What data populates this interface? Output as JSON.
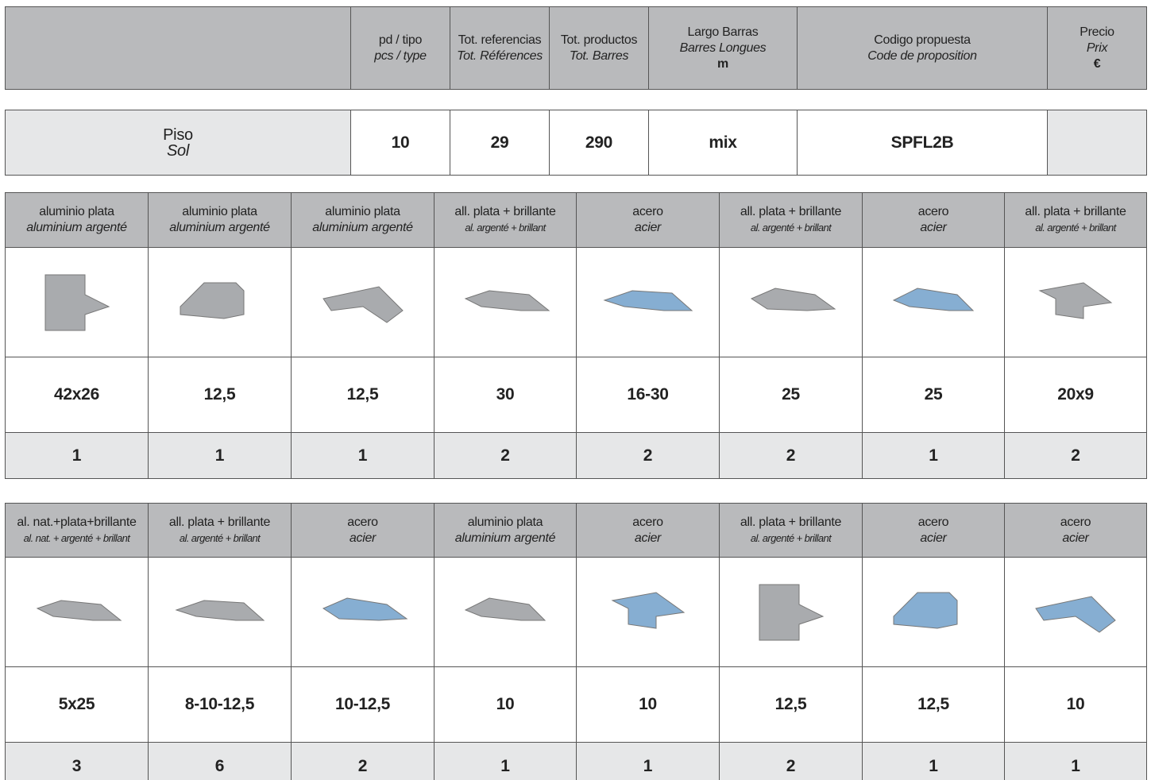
{
  "header": {
    "columns": [
      {
        "es": "pd / tipo",
        "fr": "pcs / type"
      },
      {
        "es": "Tot. referencias",
        "fr": "Tot. Références"
      },
      {
        "es": "Tot. productos",
        "fr": "Tot. Barres"
      },
      {
        "es": "Largo Barras",
        "fr": "Barres Longues",
        "unit": "m"
      },
      {
        "es": "Codigo propuesta",
        "fr": "Code de proposition"
      },
      {
        "es": "Precio",
        "fr": "Prix",
        "unit": "€"
      }
    ]
  },
  "summary": {
    "es": "Piso",
    "fr": "Sol",
    "values": [
      10,
      29,
      290,
      "mix",
      "SPFL2B"
    ]
  },
  "blocks": [
    {
      "items": [
        {
          "es": "aluminio plata",
          "fr": "aluminium argenté",
          "size": "42x26",
          "qty": 1
        },
        {
          "es": "aluminio plata",
          "fr": "aluminium argenté",
          "size": "12,5",
          "qty": 1
        },
        {
          "es": "aluminio plata",
          "fr": "aluminium argenté",
          "size": "12,5",
          "qty": 1
        },
        {
          "es": "all. plata + brillante",
          "fr": "al. argenté + brillant",
          "size": "30",
          "qty": 2
        },
        {
          "es": "acero",
          "fr": "acier",
          "size": "16-30",
          "qty": 2
        },
        {
          "es": "all. plata + brillante",
          "fr": "al. argenté + brillant",
          "size": "25",
          "qty": 2
        },
        {
          "es": "acero",
          "fr": "acier",
          "size": "25",
          "qty": 1
        },
        {
          "es": "all. plata + brillante",
          "fr": "al. argenté + brillant",
          "size": "20x9",
          "qty": 2
        }
      ]
    },
    {
      "items": [
        {
          "es": "al. nat.+plata+brillante",
          "fr": "al. nat. + argenté + brillant",
          "size": "5x25",
          "qty": 3
        },
        {
          "es": "all. plata + brillante",
          "fr": "al. argenté + brillant",
          "size": "8-10-12,5",
          "qty": 6
        },
        {
          "es": "acero",
          "fr": "acier",
          "size": "10-12,5",
          "qty": 2
        },
        {
          "es": "aluminio plata",
          "fr": "aluminium argenté",
          "size": "10",
          "qty": 1
        },
        {
          "es": "acero",
          "fr": "acier",
          "size": "10",
          "qty": 1
        },
        {
          "es": "all. plata + brillante",
          "fr": "al. argenté + brillant",
          "size": "12,5",
          "qty": 2
        },
        {
          "es": "acero",
          "fr": "acier",
          "size": "12,5",
          "qty": 1
        },
        {
          "es": "acero",
          "fr": "acier",
          "size": "10",
          "qty": 1
        }
      ]
    }
  ]
}
